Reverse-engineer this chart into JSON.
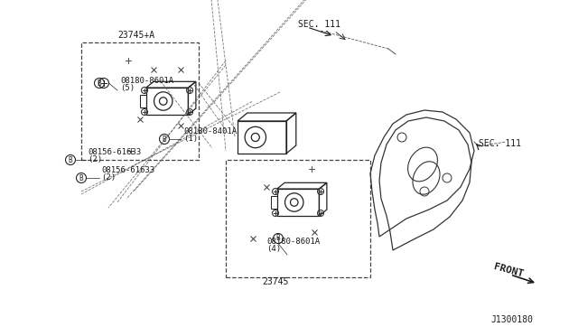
{
  "title": "",
  "bg_color": "#ffffff",
  "diagram_id": "J1300180",
  "labels": {
    "sec111_top": "SEC. 111",
    "sec111_bottom": "SEC. 111",
    "part_23745A": "23745+A",
    "part_23745": "23745",
    "part_08180_8601A_5": "08180-8601A\n(5)",
    "part_08180_8401A": "081B0-8401A\n(1)",
    "part_08156_61633_2a": "08156-61633\n(2)",
    "part_08156_61633_2b": "08156-61633\n(2)",
    "part_08180_8601A_4": "08180-8601A\n(4)",
    "front": "FRONT"
  },
  "text_color": "#1a1a1a",
  "line_color": "#1a1a1a",
  "font_size_labels": 6.5,
  "font_size_ref": 7.5
}
